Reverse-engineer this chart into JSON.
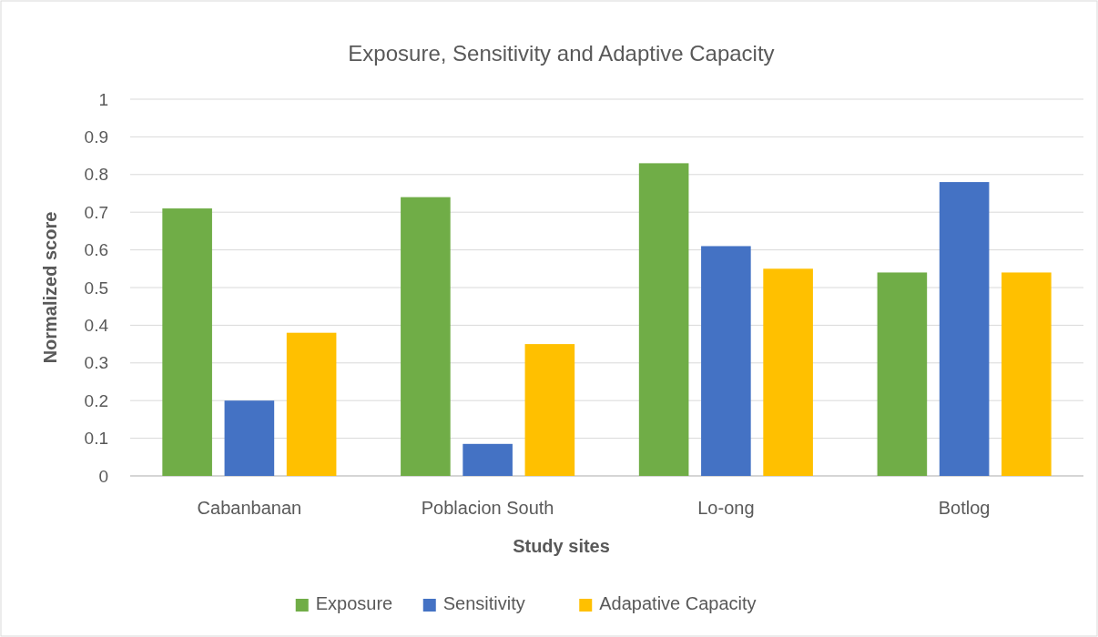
{
  "chart_data": {
    "type": "bar",
    "title": "Exposure, Sensitivity and Adaptive Capacity",
    "xlabel": "Study sites",
    "ylabel": "Normalized score",
    "categories": [
      "Cabanbanan",
      "Poblacion South",
      "Lo-ong",
      "Botlog"
    ],
    "series": [
      {
        "name": "Exposure",
        "color": "#70ad47",
        "values": [
          0.71,
          0.74,
          0.83,
          0.54
        ]
      },
      {
        "name": "Sensitivity",
        "color": "#4472c4",
        "values": [
          0.2,
          0.085,
          0.61,
          0.78
        ]
      },
      {
        "name": "Adapative Capacity",
        "color": "#ffc000",
        "values": [
          0.38,
          0.35,
          0.55,
          0.54
        ]
      }
    ],
    "ylim": [
      0,
      1
    ],
    "yticks": [
      0,
      0.1,
      0.2,
      0.3,
      0.4,
      0.5,
      0.6,
      0.7,
      0.8,
      0.9,
      1
    ],
    "grid": "y",
    "legend": "bottom"
  }
}
